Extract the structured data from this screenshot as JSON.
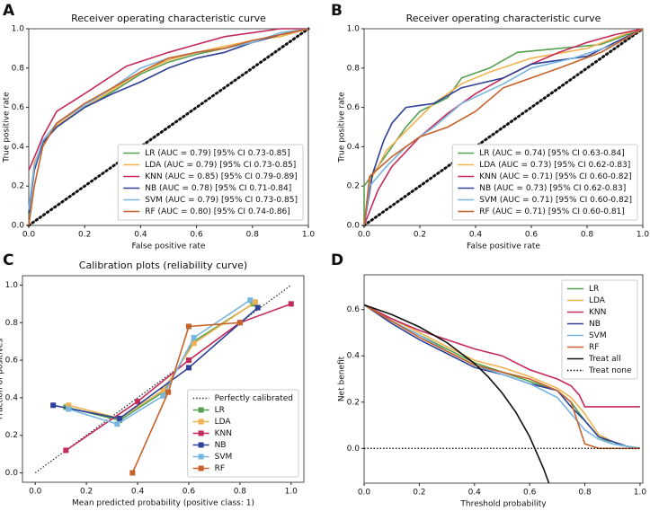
{
  "chart_data": [
    {
      "type": "line",
      "panel": "A",
      "title": "Receiver operating characteristic curve",
      "x_label": "False positive rate",
      "y_label": "True positive rate",
      "xlim": [
        0,
        1
      ],
      "ylim": [
        0,
        1
      ],
      "xticks": [
        {
          "value": 0,
          "label": "0.0"
        },
        0.2,
        0.4,
        0.6,
        0.8,
        {
          "value": 1,
          "label": "1.0"
        }
      ],
      "yticks": [
        {
          "value": 0,
          "label": "0.0"
        },
        0.2,
        0.4,
        0.6,
        0.8,
        {
          "value": 1,
          "label": "1.0"
        }
      ],
      "diagonal": true,
      "legend": "lower right",
      "series": [
        {
          "name": "LR (AUC = 0.79) [95% CI 0.73-0.85]",
          "color": "#55a04f",
          "x": [
            0,
            0.02,
            0.05,
            0.1,
            0.2,
            0.3,
            0.4,
            0.5,
            0.6,
            0.7,
            0.8,
            0.9,
            1
          ],
          "values": [
            0.05,
            0.3,
            0.42,
            0.5,
            0.6,
            0.68,
            0.77,
            0.83,
            0.87,
            0.9,
            0.93,
            0.97,
            1
          ]
        },
        {
          "name": "LDA (AUC = 0.79) [95% CI 0.73-0.85]",
          "color": "#f0b24e",
          "x": [
            0,
            0.02,
            0.05,
            0.1,
            0.2,
            0.3,
            0.4,
            0.5,
            0.6,
            0.7,
            0.8,
            0.9,
            1
          ],
          "values": [
            0.07,
            0.32,
            0.41,
            0.51,
            0.6,
            0.69,
            0.78,
            0.84,
            0.88,
            0.91,
            0.94,
            0.96,
            1
          ]
        },
        {
          "name": "KNN (AUC = 0.85) [95% CI 0.79-0.89]",
          "color": "#c52a5b",
          "x": [
            0,
            0.03,
            0.05,
            0.1,
            0.2,
            0.35,
            0.5,
            0.6,
            0.7,
            0.8,
            0.9,
            1
          ],
          "values": [
            0.28,
            0.38,
            0.45,
            0.58,
            0.67,
            0.81,
            0.88,
            0.92,
            0.96,
            0.98,
            1,
            1
          ]
        },
        {
          "name": "NB (AUC = 0.78) [95% CI 0.71-0.84]",
          "color": "#2e4098",
          "x": [
            0,
            0.02,
            0.05,
            0.1,
            0.2,
            0.3,
            0.4,
            0.5,
            0.6,
            0.7,
            0.8,
            0.9,
            1
          ],
          "values": [
            0.06,
            0.28,
            0.42,
            0.5,
            0.6,
            0.67,
            0.73,
            0.8,
            0.85,
            0.88,
            0.93,
            0.97,
            1
          ]
        },
        {
          "name": "SVM (AUC = 0.79) [95% CI 0.73-0.85]",
          "color": "#78b6e0",
          "x": [
            0,
            0.02,
            0.05,
            0.1,
            0.2,
            0.3,
            0.4,
            0.5,
            0.6,
            0.7,
            0.8,
            0.9,
            1
          ],
          "values": [
            0.08,
            0.3,
            0.43,
            0.52,
            0.61,
            0.7,
            0.8,
            0.85,
            0.88,
            0.9,
            0.93,
            0.98,
            1
          ]
        },
        {
          "name": "RF (AUC = 0.80) [95% CI 0.74-0.86]",
          "color": "#c7622b",
          "x": [
            0,
            0.02,
            0.05,
            0.1,
            0.2,
            0.3,
            0.4,
            0.5,
            0.6,
            0.7,
            0.8,
            0.9,
            1
          ],
          "values": [
            0,
            0.2,
            0.4,
            0.52,
            0.62,
            0.7,
            0.78,
            0.85,
            0.88,
            0.9,
            0.94,
            0.97,
            1
          ]
        }
      ]
    },
    {
      "type": "line",
      "panel": "B",
      "title": "Receiver operating characteristic curve",
      "x_label": "False positive rate",
      "y_label": "True positive rate",
      "xlim": [
        0,
        1
      ],
      "ylim": [
        0,
        1
      ],
      "xticks": [
        {
          "value": 0,
          "label": "0.0"
        },
        0.2,
        0.4,
        0.6,
        0.8,
        {
          "value": 1,
          "label": "1.0"
        }
      ],
      "yticks": [
        {
          "value": 0,
          "label": "0.0"
        },
        0.2,
        0.4,
        0.6,
        0.8,
        {
          "value": 1,
          "label": "1.0"
        }
      ],
      "diagonal": true,
      "legend": "lower right",
      "series": [
        {
          "name": "LR (AUC = 0.74) [95% CI 0.63-0.84]",
          "color": "#55a04f",
          "x": [
            0,
            0,
            0.05,
            0.1,
            0.15,
            0.2,
            0.3,
            0.35,
            0.45,
            0.55,
            0.7,
            0.85,
            1
          ],
          "values": [
            0,
            0.2,
            0.3,
            0.4,
            0.5,
            0.58,
            0.65,
            0.75,
            0.8,
            0.88,
            0.9,
            0.92,
            1
          ]
        },
        {
          "name": "LDA (AUC = 0.73) [95% CI 0.62-0.83]",
          "color": "#f0b24e",
          "x": [
            0,
            0.02,
            0.08,
            0.15,
            0.25,
            0.35,
            0.45,
            0.6,
            0.8,
            0.95,
            1
          ],
          "values": [
            0,
            0.22,
            0.38,
            0.48,
            0.62,
            0.72,
            0.78,
            0.85,
            0.9,
            0.98,
            1
          ]
        },
        {
          "name": "KNN (AUC = 0.71) [95% CI 0.60-0.82]",
          "color": "#c52a5b",
          "x": [
            0,
            0.05,
            0.1,
            0.2,
            0.3,
            0.4,
            0.5,
            0.6,
            0.7,
            0.8,
            0.9,
            1
          ],
          "values": [
            0,
            0.18,
            0.3,
            0.45,
            0.57,
            0.67,
            0.75,
            0.82,
            0.88,
            0.93,
            0.97,
            1
          ]
        },
        {
          "name": "NB (AUC = 0.73) [95% CI 0.62-0.83]",
          "color": "#2e4098",
          "x": [
            0,
            0.03,
            0.07,
            0.1,
            0.15,
            0.25,
            0.35,
            0.5,
            0.6,
            0.8,
            0.9,
            1
          ],
          "values": [
            0,
            0.26,
            0.43,
            0.52,
            0.6,
            0.62,
            0.7,
            0.75,
            0.82,
            0.86,
            0.93,
            1
          ]
        },
        {
          "name": "SVM (AUC = 0.71) [95% CI 0.60-0.82]",
          "color": "#78b6e0",
          "x": [
            0,
            0.02,
            0.08,
            0.15,
            0.25,
            0.35,
            0.5,
            0.6,
            0.75,
            0.9,
            1
          ],
          "values": [
            0,
            0.2,
            0.3,
            0.4,
            0.5,
            0.62,
            0.72,
            0.8,
            0.85,
            0.92,
            1
          ]
        },
        {
          "name": "RF (AUC = 0.71) [95% CI 0.60-0.81]",
          "color": "#c7622b",
          "x": [
            0,
            0.02,
            0.1,
            0.2,
            0.3,
            0.4,
            0.5,
            0.6,
            0.7,
            0.85,
            1
          ],
          "values": [
            0,
            0.25,
            0.35,
            0.45,
            0.5,
            0.58,
            0.7,
            0.75,
            0.8,
            0.88,
            1
          ]
        }
      ]
    },
    {
      "type": "line",
      "panel": "C",
      "title": "Calibration plots (reliability curve)",
      "x_label": "Mean predicted probability (positive class: 1)",
      "y_label": "Fraction of positives",
      "xlim": [
        -0.05,
        1.05
      ],
      "ylim": [
        -0.05,
        1.05
      ],
      "xticks": [
        {
          "value": 0,
          "label": "0.0"
        },
        0.2,
        0.4,
        0.6,
        0.8,
        {
          "value": 1,
          "label": "1.0"
        }
      ],
      "yticks": [
        {
          "value": 0,
          "label": "0.0"
        },
        0.2,
        0.4,
        0.6,
        0.8,
        {
          "value": 1,
          "label": "1.0"
        }
      ],
      "marker": "square",
      "legend": "lower right",
      "series": [
        {
          "name": "Perfectly calibrated",
          "color": "#333333",
          "style": "dotted",
          "x": [
            0,
            1
          ],
          "values": [
            0,
            1
          ]
        },
        {
          "name": "LR",
          "color": "#55a04f",
          "x": [
            0.12,
            0.33,
            0.5,
            0.62,
            0.85
          ],
          "values": [
            0.35,
            0.28,
            0.43,
            0.7,
            0.9
          ]
        },
        {
          "name": "LDA",
          "color": "#f0b24e",
          "x": [
            0.13,
            0.33,
            0.5,
            0.62,
            0.86
          ],
          "values": [
            0.36,
            0.29,
            0.44,
            0.69,
            0.91
          ]
        },
        {
          "name": "KNN",
          "color": "#c52a5b",
          "x": [
            0.12,
            0.4,
            0.6,
            0.8,
            1
          ],
          "values": [
            0.12,
            0.38,
            0.6,
            0.8,
            0.9
          ]
        },
        {
          "name": "NB",
          "color": "#2e4098",
          "x": [
            0.07,
            0.33,
            0.6,
            0.87
          ],
          "values": [
            0.36,
            0.29,
            0.56,
            0.88
          ]
        },
        {
          "name": "SVM",
          "color": "#78b6e0",
          "x": [
            0.13,
            0.32,
            0.5,
            0.62,
            0.84
          ],
          "values": [
            0.34,
            0.26,
            0.41,
            0.72,
            0.92
          ]
        },
        {
          "name": "RF",
          "color": "#c7622b",
          "x": [
            0.38,
            0.52,
            0.6,
            0.8
          ],
          "values": [
            0,
            0.43,
            0.78,
            0.8
          ]
        }
      ]
    },
    {
      "type": "line",
      "panel": "D",
      "x_label": "Threshold probability",
      "y_label": "Net benefit",
      "xlim": [
        0,
        1.01
      ],
      "ylim": [
        -0.15,
        0.75
      ],
      "xticks": [
        {
          "value": 0,
          "label": "0.0"
        },
        0.2,
        0.4,
        0.6,
        0.8,
        {
          "value": 1,
          "label": "1.0"
        }
      ],
      "yticks": [
        {
          "value": 0,
          "label": "0.0"
        },
        0.2,
        0.4,
        0.6
      ],
      "legend": "upper right",
      "series": [
        {
          "name": "LR",
          "color": "#55a04f",
          "x": [
            0,
            0.1,
            0.2,
            0.3,
            0.4,
            0.5,
            0.6,
            0.7,
            0.75,
            0.8,
            0.85,
            0.9,
            0.95,
            1
          ],
          "values": [
            0.62,
            0.55,
            0.49,
            0.43,
            0.37,
            0.33,
            0.29,
            0.25,
            0.2,
            0.12,
            0.05,
            0.02,
            0.01,
            0
          ]
        },
        {
          "name": "LDA",
          "color": "#f0b24e",
          "x": [
            0,
            0.1,
            0.2,
            0.3,
            0.4,
            0.5,
            0.6,
            0.7,
            0.75,
            0.8,
            0.85,
            0.9,
            0.95,
            1
          ],
          "values": [
            0.62,
            0.56,
            0.5,
            0.44,
            0.38,
            0.35,
            0.31,
            0.26,
            0.22,
            0.15,
            0.06,
            0.03,
            0.01,
            0
          ]
        },
        {
          "name": "KNN",
          "color": "#c52a5b",
          "x": [
            0,
            0.1,
            0.2,
            0.3,
            0.4,
            0.5,
            0.6,
            0.7,
            0.75,
            0.78,
            0.8,
            0.9,
            1
          ],
          "values": [
            0.62,
            0.56,
            0.51,
            0.47,
            0.43,
            0.4,
            0.34,
            0.3,
            0.27,
            0.23,
            0.18,
            0.18,
            0.18
          ]
        },
        {
          "name": "NB",
          "color": "#2e4098",
          "x": [
            0,
            0.1,
            0.2,
            0.3,
            0.4,
            0.5,
            0.6,
            0.7,
            0.75,
            0.8,
            0.85,
            0.9,
            0.95,
            1
          ],
          "values": [
            0.62,
            0.54,
            0.47,
            0.41,
            0.35,
            0.32,
            0.28,
            0.25,
            0.18,
            0.12,
            0.05,
            0.03,
            0.01,
            0
          ]
        },
        {
          "name": "SVM",
          "color": "#78b6e0",
          "x": [
            0,
            0.1,
            0.2,
            0.3,
            0.4,
            0.5,
            0.6,
            0.7,
            0.75,
            0.8,
            0.85,
            0.9,
            0.95,
            1
          ],
          "values": [
            0.62,
            0.55,
            0.49,
            0.42,
            0.36,
            0.32,
            0.28,
            0.22,
            0.15,
            0.08,
            0.04,
            0.02,
            0.01,
            0
          ]
        },
        {
          "name": "RF",
          "color": "#c7622b",
          "x": [
            0,
            0.1,
            0.2,
            0.3,
            0.4,
            0.5,
            0.6,
            0.7,
            0.75,
            0.8,
            0.85,
            0.9,
            0.95,
            1
          ],
          "values": [
            0.62,
            0.55,
            0.48,
            0.42,
            0.36,
            0.33,
            0.3,
            0.25,
            0.2,
            0.02,
            0,
            0,
            0,
            0
          ]
        },
        {
          "name": "Treat all",
          "color": "#111111",
          "x": [
            0,
            0.1,
            0.2,
            0.3,
            0.4,
            0.45,
            0.5,
            0.55,
            0.6,
            0.65,
            0.67
          ],
          "values": [
            0.62,
            0.578,
            0.525,
            0.457,
            0.367,
            0.309,
            0.24,
            0.156,
            0.05,
            -0.086,
            -0.15
          ]
        },
        {
          "name": "Treat none",
          "color": "#111111",
          "style": "dotted",
          "x": [
            0,
            1
          ],
          "values": [
            0,
            0
          ]
        }
      ]
    }
  ]
}
